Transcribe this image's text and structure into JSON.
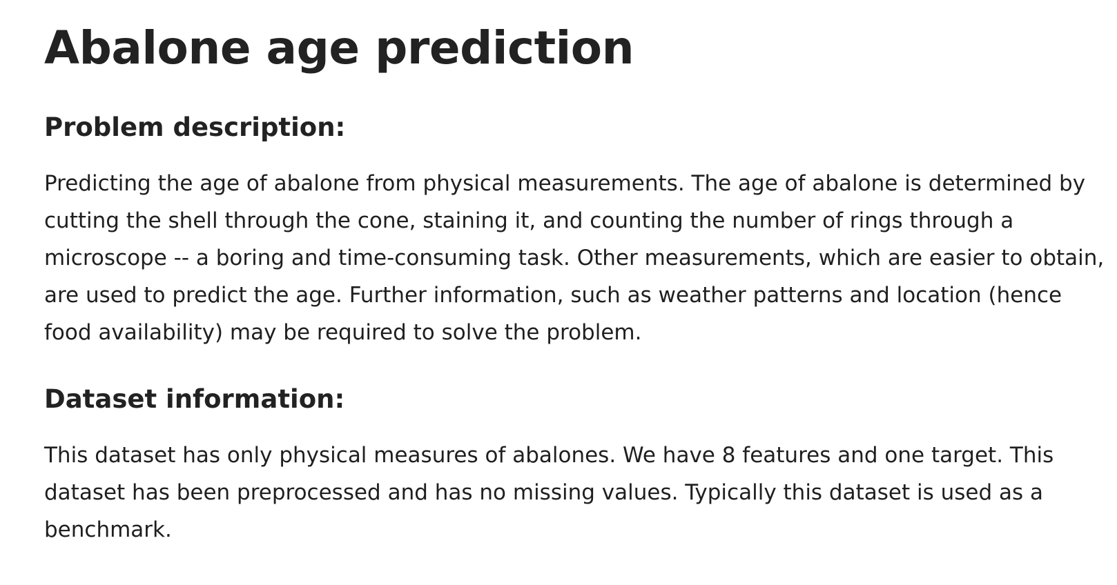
{
  "title": "Abalone age prediction",
  "sections": [
    {
      "heading": "Problem description:",
      "lines": [
        "Predicting the age of abalone from physical measurements. The age of abalone is determined by",
        "cutting the shell through the cone, staining it, and counting the number of rings through a",
        "microscope -- a boring and time-consuming task. Other measurements, which are easier to obtain,",
        "are used to predict the age. Further information, such as weather patterns and location (hence",
        "food availability) may be required to solve the problem."
      ]
    },
    {
      "heading": "Dataset information:",
      "lines": [
        "This dataset has only physical measures of abalones. We have 8 features and one target. This",
        "dataset has been preprocessed and has no missing values. Typically this dataset is used as a",
        "benchmark."
      ]
    }
  ]
}
